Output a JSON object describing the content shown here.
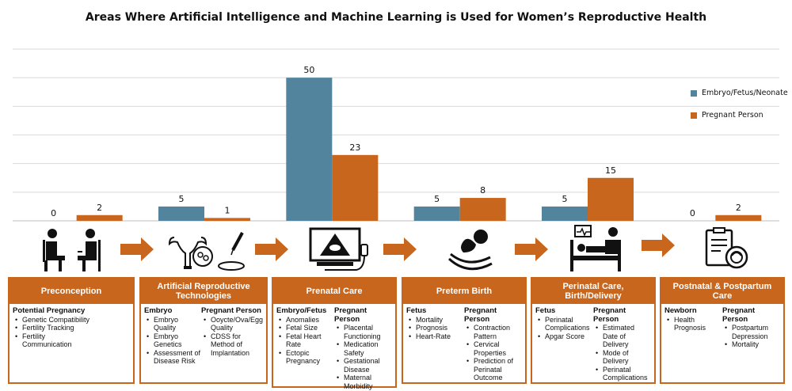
{
  "title": "Areas Where Artificial Intelligence and Machine Learning is Used for Women’s Reproductive Health",
  "chart_data": {
    "type": "bar",
    "title": "Areas Where Artificial Intelligence and Machine Learning is Used for Women’s Reproductive Health",
    "categories": [
      "Preconception",
      "Artificial Reproductive Technologies",
      "Prenatal Care",
      "Preterm Birth",
      "Perinatal Care, Birth/Delivery",
      "Postnatal & Postpartum Care"
    ],
    "series": [
      {
        "name": "Embryo/Fetus/Neonate",
        "color": "#52849e",
        "values": [
          0,
          5,
          50,
          5,
          5,
          0
        ]
      },
      {
        "name": "Pregnant Person",
        "color": "#c8661e",
        "values": [
          2,
          1,
          23,
          8,
          15,
          2
        ]
      }
    ],
    "ylim": [
      0,
      60
    ],
    "grid": true,
    "legend": "right"
  },
  "legend": [
    {
      "label": "Embryo/Fetus/Neonate",
      "color": "#52849e"
    },
    {
      "label": "Pregnant Person",
      "color": "#c8661e"
    }
  ],
  "icons": [
    "consultation-icon",
    "reproductive-lab-icon",
    "ultrasound-icon",
    "newborn-hands-icon",
    "hospital-bed-icon",
    "postpartum-clipboard-icon"
  ],
  "cards": [
    {
      "title": "Preconception",
      "cols": [
        {
          "head": "Potential Pregnancy",
          "items": [
            "Genetic Compatibility",
            "Fertility Tracking",
            "Fertility Communication"
          ]
        }
      ]
    },
    {
      "title": "Artificial Reproductive Technologies",
      "cols": [
        {
          "head": "Embryo",
          "items": [
            "Embryo Quality",
            "Embryo Genetics",
            "Assessment of Disease Risk"
          ]
        },
        {
          "head": "Pregnant Person",
          "items": [
            "Ooycte/Ova/Egg Quality",
            "CDSS for Method of Implantation"
          ]
        }
      ]
    },
    {
      "title": "Prenatal Care",
      "cols": [
        {
          "head": "Embryo/Fetus",
          "items": [
            "Anomalies",
            "Fetal Size",
            "Fetal Heart Rate",
            "Ectopic Pregnancy"
          ]
        },
        {
          "head": "Pregnant Person",
          "items": [
            "Placental Functioning",
            "Medication Safety",
            "Gestational Disease",
            "Maternal Morbidity"
          ]
        }
      ]
    },
    {
      "title": "Preterm Birth",
      "cols": [
        {
          "head": "Fetus",
          "items": [
            "Mortality",
            "Prognosis",
            "Heart-Rate"
          ]
        },
        {
          "head": "Pregnant Person",
          "items": [
            "Contraction Pattern",
            "Cervical Properties",
            "Prediction of Perinatal Outcome"
          ]
        }
      ]
    },
    {
      "title": "Perinatal Care, Birth/Delivery",
      "cols": [
        {
          "head": "Fetus",
          "items": [
            "Perinatal Complications",
            "Apgar Score"
          ]
        },
        {
          "head": "Pregnant Person",
          "items": [
            "Estimated Date of Delivery",
            "Mode of Delivery",
            "Perinatal Complications"
          ]
        }
      ]
    },
    {
      "title": "Postnatal & Postpartum Care",
      "cols": [
        {
          "head": "Newborn",
          "items": [
            "Health Prognosis"
          ]
        },
        {
          "head": "Pregnant Person",
          "items": [
            "Postpartum Depression",
            "Mortality"
          ]
        }
      ]
    }
  ]
}
